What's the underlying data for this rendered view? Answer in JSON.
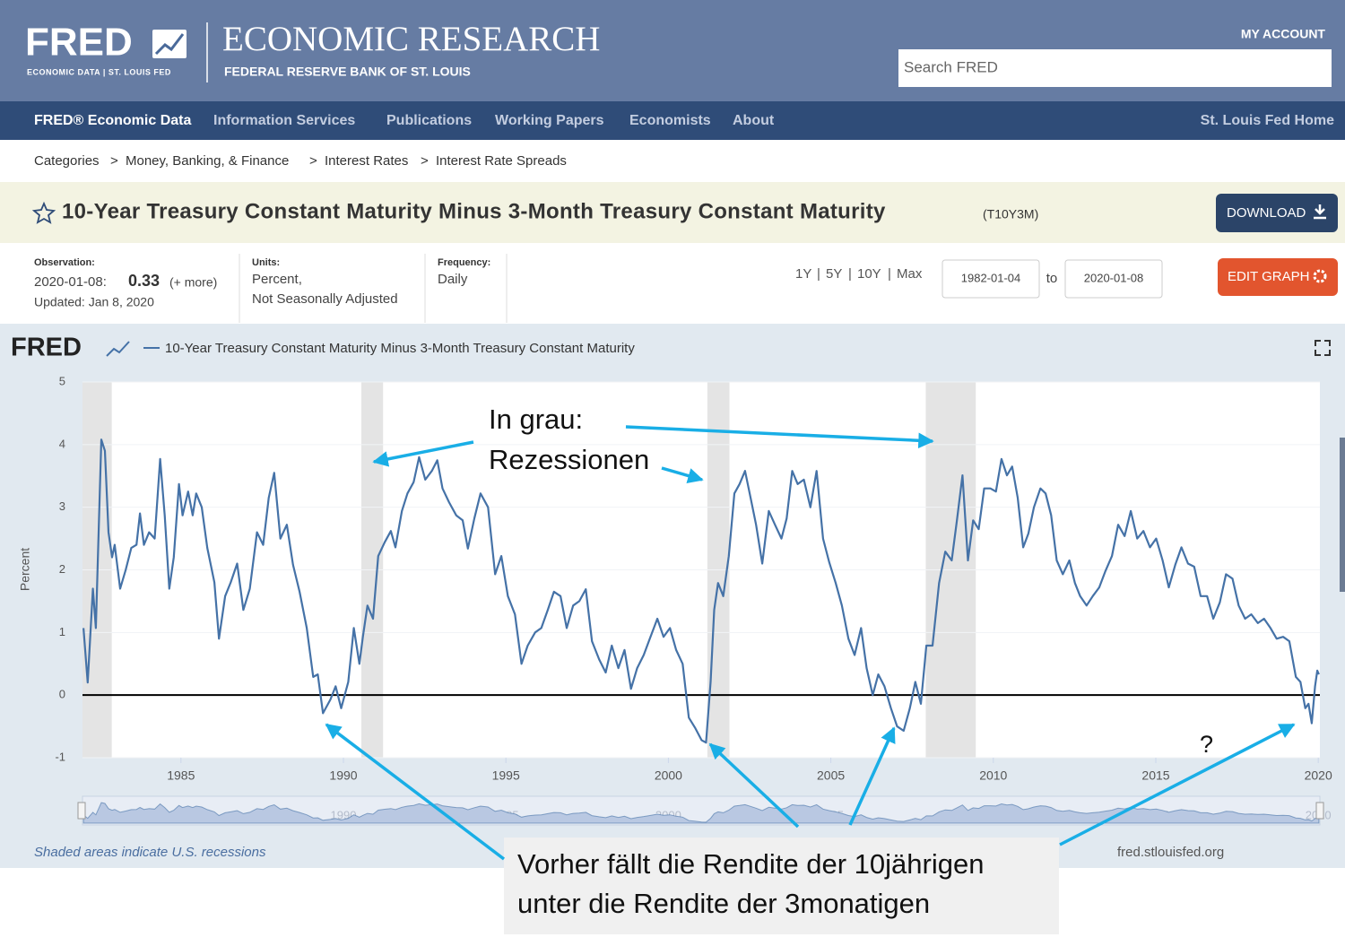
{
  "header": {
    "logo": "FRED",
    "logo_sub": "ECONOMIC DATA | ST. LOUIS FED",
    "org": "ECONOMIC RESEARCH",
    "bank": "FEDERAL RESERVE BANK OF ST. LOUIS",
    "account": "MY ACCOUNT",
    "search_placeholder": "Search FRED"
  },
  "nav": {
    "items": [
      "FRED® Economic Data",
      "Information Services",
      "Publications",
      "Working Papers",
      "Economists",
      "About"
    ],
    "home": "St. Louis Fed Home"
  },
  "breadcrumb": {
    "items": [
      "Categories",
      "Money, Banking, & Finance",
      "Interest Rates",
      "Interest Rate Spreads"
    ],
    "separator": ">"
  },
  "series_header": {
    "title": "10-Year Treasury Constant Maturity Minus 3-Month Treasury Constant Maturity",
    "code": "(T10Y3M)",
    "download": "DOWNLOAD"
  },
  "meta": {
    "observation_label": "Observation:",
    "observation_date": "2020-01-08:",
    "observation_value": 0.33,
    "more": "(+ more)",
    "updated": "Updated: Jan 8, 2020",
    "units_label": "Units:",
    "units": [
      "Percent,",
      "Not Seasonally Adjusted"
    ],
    "frequency_label": "Frequency:",
    "frequency": "Daily"
  },
  "range": {
    "presets": [
      "1Y",
      "5Y",
      "10Y",
      "Max"
    ],
    "separator": "|",
    "start": "1982-01-04",
    "to": "to",
    "end": "2020-01-08",
    "edit": "EDIT GRAPH"
  },
  "chart_panel": {
    "logo": "FRED",
    "note": "Shaded areas indicate U.S. recessions",
    "source": "fred.stlouisfed.org"
  },
  "chart_data": {
    "type": "line",
    "y_label": "Percent",
    "xlim": [
      1981.97,
      2020.05
    ],
    "ylim": [
      -1,
      5
    ],
    "xticks": [
      1985,
      1990,
      1995,
      2000,
      2005,
      2010,
      2015,
      2020
    ],
    "yticks": [
      -1,
      0,
      1,
      2,
      3,
      4,
      5
    ],
    "grid": true,
    "recession_color": "#e4e4e4",
    "recessions": [
      [
        1981.97,
        1982.87
      ],
      [
        1990.55,
        1991.22
      ],
      [
        2001.2,
        2001.88
      ],
      [
        2007.92,
        2009.46
      ]
    ],
    "x": [
      1982.0,
      1982.13,
      1982.29,
      1982.38,
      1982.55,
      1982.66,
      1982.77,
      1982.88,
      1982.96,
      1983.13,
      1983.3,
      1983.47,
      1983.63,
      1983.74,
      1983.86,
      1984.02,
      1984.19,
      1984.36,
      1984.5,
      1984.64,
      1984.78,
      1984.94,
      1985.05,
      1985.22,
      1985.36,
      1985.47,
      1985.64,
      1985.81,
      1986.03,
      1986.17,
      1986.36,
      1986.53,
      1986.73,
      1986.92,
      1987.12,
      1987.34,
      1987.53,
      1987.7,
      1987.87,
      1988.06,
      1988.26,
      1988.45,
      1988.65,
      1988.87,
      1989.07,
      1989.21,
      1989.37,
      1989.6,
      1989.76,
      1989.93,
      1990.15,
      1990.32,
      1990.49,
      1990.6,
      1990.74,
      1990.91,
      1991.07,
      1991.27,
      1991.46,
      1991.6,
      1991.8,
      1991.97,
      1992.16,
      1992.33,
      1992.52,
      1992.72,
      1992.89,
      1993.05,
      1993.25,
      1993.47,
      1993.67,
      1993.83,
      1994.03,
      1994.22,
      1994.45,
      1994.67,
      1994.86,
      1995.06,
      1995.28,
      1995.48,
      1995.67,
      1995.9,
      1996.09,
      1996.29,
      1996.48,
      1996.68,
      1996.87,
      1997.07,
      1997.26,
      1997.46,
      1997.65,
      1997.87,
      1998.07,
      1998.26,
      1998.46,
      1998.65,
      1998.85,
      1999.04,
      1999.24,
      1999.43,
      1999.66,
      1999.85,
      2000.05,
      2000.24,
      2000.44,
      2000.63,
      2000.83,
      2001.02,
      2001.16,
      2001.3,
      2001.41,
      2001.53,
      2001.69,
      2001.86,
      2002.03,
      2002.19,
      2002.36,
      2002.53,
      2002.7,
      2002.89,
      2003.09,
      2003.28,
      2003.48,
      2003.64,
      2003.81,
      2003.98,
      2004.17,
      2004.37,
      2004.56,
      2004.76,
      2004.95,
      2005.15,
      2005.34,
      2005.54,
      2005.73,
      2005.93,
      2006.1,
      2006.29,
      2006.46,
      2006.65,
      2006.85,
      2007.04,
      2007.24,
      2007.43,
      2007.6,
      2007.77,
      2007.94,
      2008.13,
      2008.33,
      2008.52,
      2008.72,
      2008.88,
      2009.05,
      2009.22,
      2009.38,
      2009.55,
      2009.72,
      2009.91,
      2010.08,
      2010.25,
      2010.42,
      2010.58,
      2010.75,
      2010.92,
      2011.08,
      2011.25,
      2011.45,
      2011.61,
      2011.78,
      2011.95,
      2012.14,
      2012.34,
      2012.51,
      2012.67,
      2012.87,
      2013.06,
      2013.26,
      2013.45,
      2013.65,
      2013.84,
      2014.04,
      2014.23,
      2014.43,
      2014.62,
      2014.82,
      2015.01,
      2015.21,
      2015.4,
      2015.6,
      2015.79,
      2015.99,
      2016.18,
      2016.38,
      2016.58,
      2016.77,
      2016.97,
      2017.16,
      2017.36,
      2017.55,
      2017.75,
      2017.94,
      2018.14,
      2018.33,
      2018.53,
      2018.72,
      2018.92,
      2019.11,
      2019.31,
      2019.45,
      2019.6,
      2019.7,
      2019.8,
      2019.9,
      2019.97,
      2020.02
    ],
    "series": [
      {
        "name": "10-Year Treasury Constant Maturity Minus 3-Month Treasury Constant Maturity",
        "color": "#4572a7",
        "values": [
          1.07,
          0.2,
          1.7,
          1.07,
          4.08,
          3.9,
          2.6,
          2.2,
          2.4,
          1.7,
          2.0,
          2.35,
          2.4,
          2.9,
          2.4,
          2.6,
          2.5,
          3.77,
          2.87,
          1.7,
          2.2,
          3.37,
          2.87,
          3.25,
          2.87,
          3.22,
          3.0,
          2.35,
          1.8,
          0.9,
          1.58,
          1.8,
          2.1,
          1.36,
          1.7,
          2.6,
          2.4,
          3.15,
          3.55,
          2.5,
          2.72,
          2.08,
          1.65,
          1.07,
          0.29,
          0.33,
          -0.29,
          -0.07,
          0.14,
          -0.21,
          0.21,
          1.07,
          0.5,
          0.93,
          1.43,
          1.22,
          2.22,
          2.44,
          2.62,
          2.36,
          2.94,
          3.22,
          3.4,
          3.8,
          3.44,
          3.58,
          3.75,
          3.3,
          3.08,
          2.87,
          2.79,
          2.34,
          2.82,
          3.22,
          3.0,
          1.93,
          2.22,
          1.58,
          1.29,
          0.5,
          0.79,
          1.0,
          1.07,
          1.36,
          1.65,
          1.58,
          1.07,
          1.43,
          1.5,
          1.69,
          0.86,
          0.57,
          0.36,
          0.79,
          0.43,
          0.72,
          0.1,
          0.43,
          0.64,
          0.9,
          1.22,
          0.93,
          1.07,
          0.72,
          0.5,
          -0.36,
          -0.53,
          -0.72,
          -0.76,
          0.21,
          1.36,
          1.79,
          1.58,
          2.22,
          3.22,
          3.37,
          3.58,
          3.15,
          2.72,
          2.1,
          2.94,
          2.72,
          2.5,
          2.82,
          3.58,
          3.37,
          3.44,
          3.0,
          3.58,
          2.5,
          2.12,
          1.79,
          1.43,
          0.9,
          0.64,
          1.07,
          0.43,
          0.0,
          0.33,
          0.14,
          -0.21,
          -0.5,
          -0.57,
          -0.21,
          0.21,
          -0.14,
          0.79,
          0.79,
          1.79,
          2.29,
          2.15,
          2.79,
          3.51,
          2.15,
          2.79,
          2.65,
          3.3,
          3.3,
          3.25,
          3.77,
          3.51,
          3.65,
          3.15,
          2.36,
          2.58,
          3.0,
          3.3,
          3.22,
          2.87,
          2.15,
          1.93,
          2.15,
          1.79,
          1.58,
          1.43,
          1.58,
          1.72,
          1.98,
          2.22,
          2.72,
          2.54,
          2.94,
          2.5,
          2.62,
          2.36,
          2.5,
          2.15,
          1.72,
          2.08,
          2.36,
          2.1,
          2.05,
          1.58,
          1.58,
          1.22,
          1.48,
          1.93,
          1.86,
          1.43,
          1.22,
          1.29,
          1.15,
          1.22,
          1.07,
          0.9,
          0.93,
          0.86,
          0.29,
          0.21,
          -0.21,
          -0.14,
          -0.45,
          0.14,
          0.39,
          0.33
        ]
      }
    ]
  },
  "annotations": {
    "recession_label": [
      "In grau:",
      "Rezessionen"
    ],
    "question": "?",
    "explanation": [
      "Vorher fällt die Rendite der 10jährigen",
      "unter die Rendite der 3monatigen"
    ]
  }
}
